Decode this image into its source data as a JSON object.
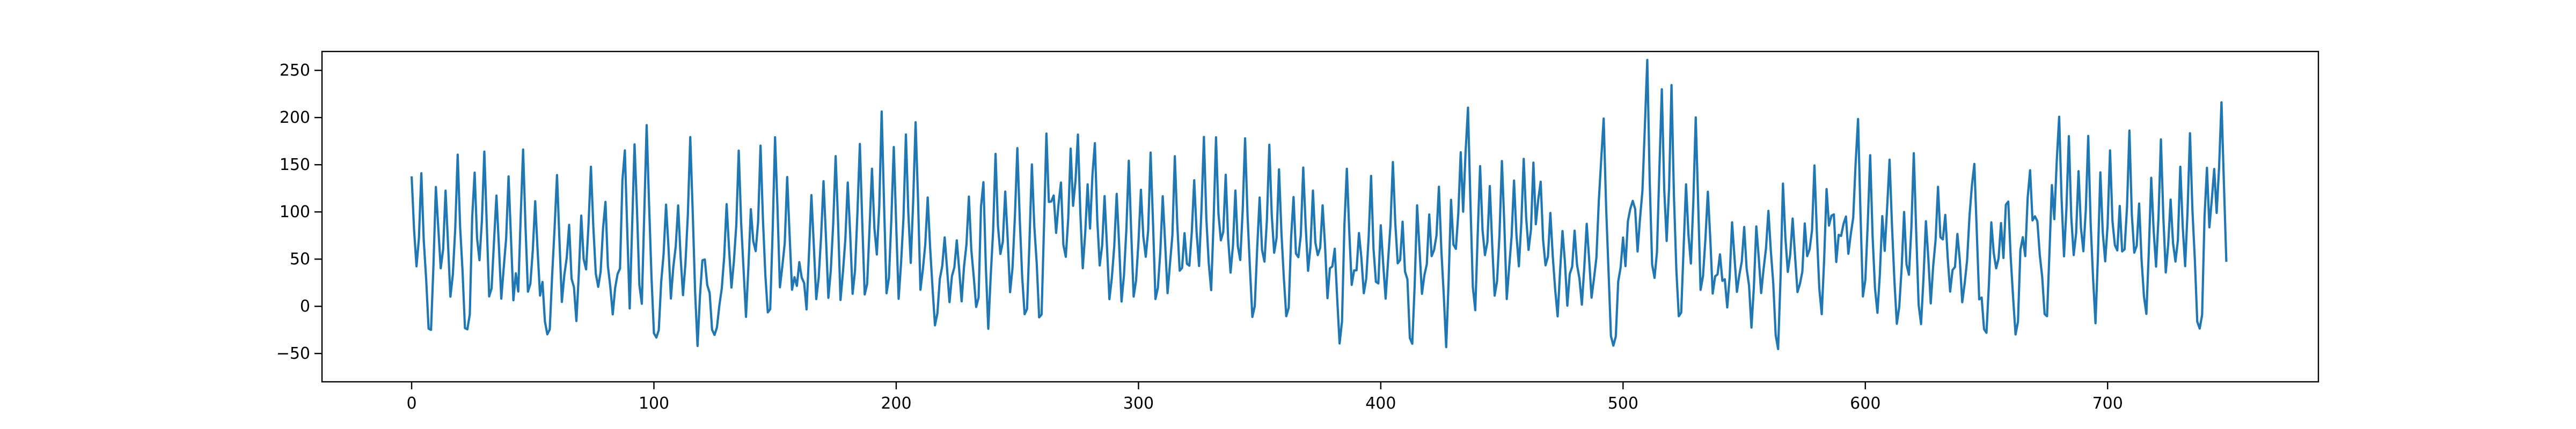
{
  "chart_data": {
    "type": "line",
    "title": "",
    "xlabel": "",
    "ylabel": "",
    "xlim": [
      -37,
      787
    ],
    "ylim": [
      -80,
      270
    ],
    "xticks": [
      0,
      100,
      200,
      300,
      400,
      500,
      600,
      700
    ],
    "yticks": [
      -50,
      0,
      50,
      100,
      150,
      200,
      250
    ],
    "grid": false,
    "legend": "none",
    "series": [
      {
        "color": "#1f77b4",
        "n_points": 750,
        "events": [
          [
            0,
            133
          ],
          [
            4,
            140
          ],
          [
            8,
            -35
          ],
          [
            10,
            140
          ],
          [
            14,
            125
          ],
          [
            19,
            165
          ],
          [
            23,
            -25
          ],
          [
            26,
            140
          ],
          [
            30,
            165
          ],
          [
            35,
            115
          ],
          [
            40,
            135
          ],
          [
            46,
            170
          ],
          [
            51,
            110
          ],
          [
            56,
            -30
          ],
          [
            60,
            140
          ],
          [
            65,
            85
          ],
          [
            68,
            -32
          ],
          [
            70,
            105
          ],
          [
            74,
            145
          ],
          [
            78,
            30
          ],
          [
            80,
            100
          ],
          [
            83,
            -20
          ],
          [
            85,
            40
          ],
          [
            88,
            170
          ],
          [
            90,
            -25
          ],
          [
            92,
            185
          ],
          [
            95,
            -15
          ],
          [
            97,
            200
          ],
          [
            101,
            -30
          ],
          [
            105,
            115
          ],
          [
            110,
            110
          ],
          [
            115,
            185
          ],
          [
            118,
            -62
          ],
          [
            120,
            60
          ],
          [
            125,
            -25
          ],
          [
            130,
            115
          ],
          [
            135,
            170
          ],
          [
            138,
            -20
          ],
          [
            140,
            115
          ],
          [
            144,
            170
          ],
          [
            148,
            -20
          ],
          [
            150,
            185
          ],
          [
            155,
            130
          ],
          [
            160,
            40
          ],
          [
            163,
            -10
          ],
          [
            165,
            115
          ],
          [
            170,
            135
          ],
          [
            175,
            160
          ],
          [
            180,
            130
          ],
          [
            185,
            170
          ],
          [
            190,
            145
          ],
          [
            194,
            200
          ],
          [
            199,
            165
          ],
          [
            204,
            180
          ],
          [
            208,
            200
          ],
          [
            213,
            120
          ],
          [
            216,
            -15
          ],
          [
            220,
            70
          ],
          [
            225,
            75
          ],
          [
            230,
            115
          ],
          [
            233,
            -10
          ],
          [
            236,
            180
          ],
          [
            237,
            -52
          ],
          [
            241,
            160
          ],
          [
            245,
            130
          ],
          [
            250,
            175
          ],
          [
            254,
            -20
          ],
          [
            256,
            160
          ],
          [
            260,
            -15
          ],
          [
            262,
            180
          ],
          [
            265,
            120
          ],
          [
            268,
            135
          ],
          [
            272,
            160
          ],
          [
            275,
            180
          ],
          [
            279,
            135
          ],
          [
            282,
            175
          ],
          [
            286,
            110
          ],
          [
            291,
            120
          ],
          [
            296,
            150
          ],
          [
            301,
            125
          ],
          [
            305,
            155
          ],
          [
            310,
            115
          ],
          [
            315,
            150
          ],
          [
            319,
            75
          ],
          [
            323,
            140
          ],
          [
            327,
            185
          ],
          [
            331,
            -5
          ],
          [
            332,
            185
          ],
          [
            336,
            145
          ],
          [
            340,
            120
          ],
          [
            344,
            180
          ],
          [
            348,
            -5
          ],
          [
            350,
            120
          ],
          [
            354,
            170
          ],
          [
            358,
            140
          ],
          [
            361,
            -10
          ],
          [
            364,
            110
          ],
          [
            368,
            145
          ],
          [
            372,
            125
          ],
          [
            376,
            115
          ],
          [
            381,
            85
          ],
          [
            383,
            -48
          ],
          [
            386,
            150
          ],
          [
            391,
            80
          ],
          [
            396,
            140
          ],
          [
            399,
            -40
          ],
          [
            400,
            115
          ],
          [
            405,
            155
          ],
          [
            409,
            90
          ],
          [
            413,
            -52
          ],
          [
            415,
            125
          ],
          [
            420,
            100
          ],
          [
            424,
            130
          ],
          [
            427,
            -62
          ],
          [
            429,
            120
          ],
          [
            433,
            170
          ],
          [
            436,
            205
          ],
          [
            439,
            -20
          ],
          [
            441,
            155
          ],
          [
            445,
            120
          ],
          [
            450,
            155
          ],
          [
            455,
            130
          ],
          [
            459,
            160
          ],
          [
            463,
            150
          ],
          [
            466,
            130
          ],
          [
            470,
            90
          ],
          [
            474,
            -15
          ],
          [
            475,
            90
          ],
          [
            480,
            80
          ],
          [
            483,
            -10
          ],
          [
            485,
            90
          ],
          [
            490,
            95
          ],
          [
            492,
            195
          ],
          [
            496,
            -42
          ],
          [
            500,
            70
          ],
          [
            503,
            90
          ],
          [
            505,
            100
          ],
          [
            508,
            100
          ],
          [
            510,
            255
          ],
          [
            514,
            40
          ],
          [
            516,
            225
          ],
          [
            520,
            235
          ],
          [
            524,
            -15
          ],
          [
            526,
            140
          ],
          [
            530,
            200
          ],
          [
            535,
            130
          ],
          [
            540,
            65
          ],
          [
            544,
            -20
          ],
          [
            545,
            105
          ],
          [
            550,
            90
          ],
          [
            553,
            -35
          ],
          [
            555,
            95
          ],
          [
            560,
            110
          ],
          [
            564,
            -50
          ],
          [
            566,
            140
          ],
          [
            570,
            100
          ],
          [
            575,
            85
          ],
          [
            579,
            155
          ],
          [
            582,
            -25
          ],
          [
            584,
            140
          ],
          [
            587,
            90
          ],
          [
            590,
            70
          ],
          [
            592,
            90
          ],
          [
            595,
            75
          ],
          [
            597,
            195
          ],
          [
            602,
            165
          ],
          [
            605,
            -25
          ],
          [
            607,
            100
          ],
          [
            610,
            150
          ],
          [
            614,
            -15
          ],
          [
            616,
            100
          ],
          [
            620,
            160
          ],
          [
            623,
            -30
          ],
          [
            625,
            100
          ],
          [
            630,
            120
          ],
          [
            633,
            95
          ],
          [
            638,
            75
          ],
          [
            643,
            85
          ],
          [
            645,
            145
          ],
          [
            650,
            -32
          ],
          [
            652,
            100
          ],
          [
            656,
            90
          ],
          [
            659,
            110
          ],
          [
            662,
            -30
          ],
          [
            665,
            80
          ],
          [
            668,
            145
          ],
          [
            671,
            95
          ],
          [
            675,
            -15
          ],
          [
            677,
            135
          ],
          [
            680,
            205
          ],
          [
            684,
            175
          ],
          [
            688,
            145
          ],
          [
            692,
            180
          ],
          [
            695,
            -30
          ],
          [
            697,
            150
          ],
          [
            701,
            165
          ],
          [
            705,
            110
          ],
          [
            709,
            190
          ],
          [
            713,
            115
          ],
          [
            716,
            -30
          ],
          [
            718,
            150
          ],
          [
            722,
            175
          ],
          [
            726,
            110
          ],
          [
            730,
            145
          ],
          [
            734,
            185
          ],
          [
            738,
            -20
          ],
          [
            741,
            140
          ],
          [
            744,
            150
          ],
          [
            747,
            205
          ],
          [
            749,
            25
          ]
        ]
      }
    ]
  }
}
